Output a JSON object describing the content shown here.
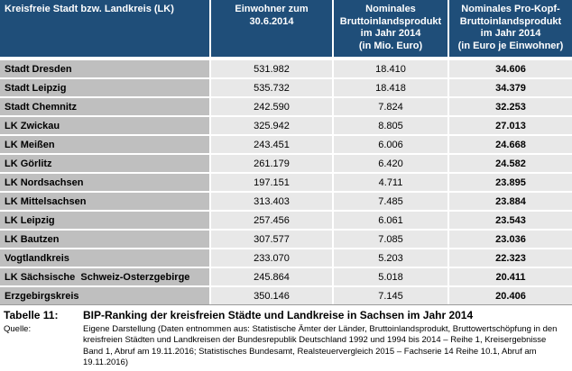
{
  "colors": {
    "header_bg": "#1F4E79",
    "header_text": "#FFFFFF",
    "row_label_bg": "#BFBFBF",
    "row_value_bg": "#E8E8E8",
    "grid_line": "#FFFFFF",
    "text": "#000000"
  },
  "table": {
    "header": {
      "col1": "Kreisfreie Stadt bzw. Landkreis (LK)",
      "col2": "Einwohner zum\n30.6.2014",
      "col3": "Nominales\nBruttoinlandsprodukt\nim Jahr 2014\n(in Mio. Euro)",
      "col4": "Nominales Pro-Kopf-\nBruttoinlandsprodukt\nim Jahr 2014\n(in Euro je Einwohner)"
    },
    "rows": [
      {
        "name": "Stadt Dresden",
        "einwohner": "531.982",
        "bip_mio": "18.410",
        "bip_pro_kopf": "34.606"
      },
      {
        "name": "Stadt Leipzig",
        "einwohner": "535.732",
        "bip_mio": "18.418",
        "bip_pro_kopf": "34.379"
      },
      {
        "name": "Stadt Chemnitz",
        "einwohner": "242.590",
        "bip_mio": "7.824",
        "bip_pro_kopf": "32.253"
      },
      {
        "name": "LK Zwickau",
        "einwohner": "325.942",
        "bip_mio": "8.805",
        "bip_pro_kopf": "27.013"
      },
      {
        "name": "LK Meißen",
        "einwohner": "243.451",
        "bip_mio": "6.006",
        "bip_pro_kopf": "24.668"
      },
      {
        "name": "LK Görlitz",
        "einwohner": "261.179",
        "bip_mio": "6.420",
        "bip_pro_kopf": "24.582"
      },
      {
        "name": "LK Nordsachsen",
        "einwohner": "197.151",
        "bip_mio": "4.711",
        "bip_pro_kopf": "23.895"
      },
      {
        "name": "LK Mittelsachsen",
        "einwohner": "313.403",
        "bip_mio": "7.485",
        "bip_pro_kopf": "23.884"
      },
      {
        "name": "LK Leipzig",
        "einwohner": "257.456",
        "bip_mio": "6.061",
        "bip_pro_kopf": "23.543"
      },
      {
        "name": "LK Bautzen",
        "einwohner": "307.577",
        "bip_mio": "7.085",
        "bip_pro_kopf": "23.036"
      },
      {
        "name": "Vogtlandkreis",
        "einwohner": "233.070",
        "bip_mio": "5.203",
        "bip_pro_kopf": "22.323"
      },
      {
        "name": "LK Sächsische  Schweiz-Osterzgebirge",
        "einwohner": "245.864",
        "bip_mio": "5.018",
        "bip_pro_kopf": "20.411"
      },
      {
        "name": "Erzgebirgskreis",
        "einwohner": "350.146",
        "bip_mio": "7.145",
        "bip_pro_kopf": "20.406"
      }
    ]
  },
  "caption": {
    "label": "Tabelle 11:",
    "title": "BIP-Ranking der kreisfreien Städte und Landkreise in Sachsen im Jahr 2014",
    "source_label": "Quelle:",
    "source_text": "Eigene Darstellung (Daten entnommen aus: Statistische Ämter der Länder, Bruttoinlandsprodukt, Bruttowertschöpfung in den kreisfreien Städten und Landkreisen der Bundesrepublik Deutschland 1992 und 1994 bis 2014 – Reihe 1, Kreisergebnisse Band 1, Abruf am 19.11.2016; Statistisches Bundesamt, Realsteuervergleich 2015 – Fachserie 14 Reihe 10.1, Abruf am 19.11.2016)"
  }
}
